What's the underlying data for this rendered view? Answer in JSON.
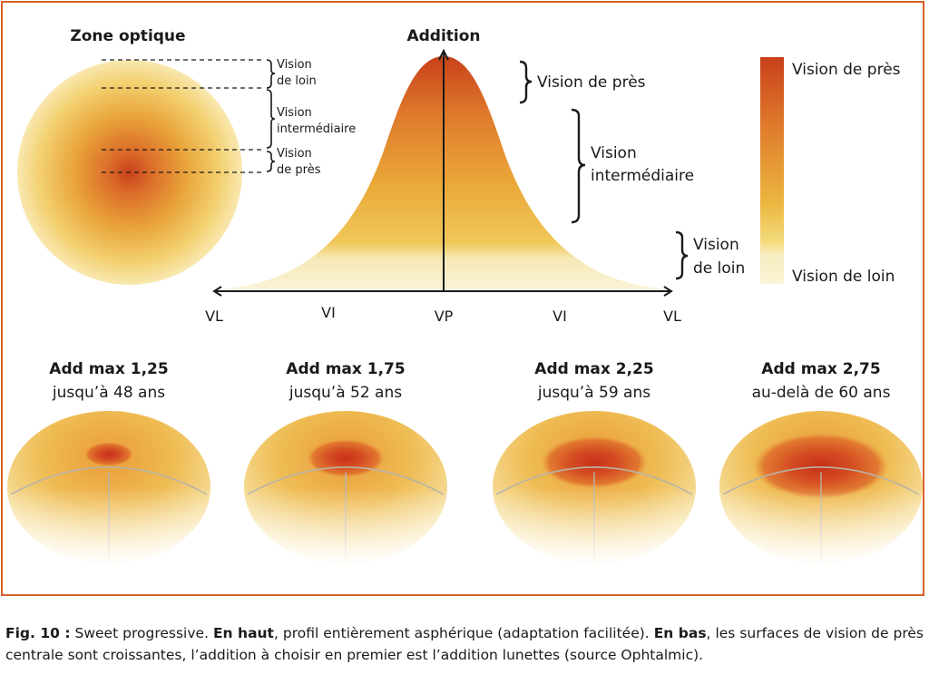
{
  "colors": {
    "frame": "#d9622b",
    "near": "#c8401a",
    "intermediate": "#eaa838",
    "far": "#f8f0c8"
  },
  "optical_zone": {
    "title": "Zone optique",
    "far_line1": "Vision",
    "far_line2": "de loin",
    "inter_line1": "Vision",
    "inter_line2": "intermédiaire",
    "near_line1": "Vision",
    "near_line2": "de près"
  },
  "profile": {
    "title": "Addition",
    "near_label": "Vision de près",
    "inter_line1": "Vision",
    "inter_line2": "intermédiaire",
    "far_line1": "Vision",
    "far_line2": "de loin",
    "axis_labels": [
      "VL",
      "VI",
      "VP",
      "VI",
      "VL"
    ]
  },
  "legend": {
    "top": "Vision de près",
    "bottom": "Vision de loin"
  },
  "lenses": [
    {
      "title": "Add max 1,25",
      "subtitle": "jusqu’à 48 ans",
      "near_zone_fraction": 0.25
    },
    {
      "title": "Add max 1,75",
      "subtitle": "jusqu’à 52 ans",
      "near_zone_fraction": 0.4
    },
    {
      "title": "Add max 2,25",
      "subtitle": "jusqu’à 59 ans",
      "near_zone_fraction": 0.55
    },
    {
      "title": "Add max 2,75",
      "subtitle": "au-delà de 60 ans",
      "near_zone_fraction": 0.7
    }
  ],
  "caption": {
    "label": "Fig. 10 :",
    "text1": " Sweet progressive. ",
    "bold1": "En haut",
    "text2": ", profil entièrement asphérique (adaptation facilitée). ",
    "bold2": "En bas",
    "text3": ", les surfaces de vision de près centrale sont croissantes, l’addition à choisir en premier est l’addition lunettes (source Ophtalmic)."
  }
}
